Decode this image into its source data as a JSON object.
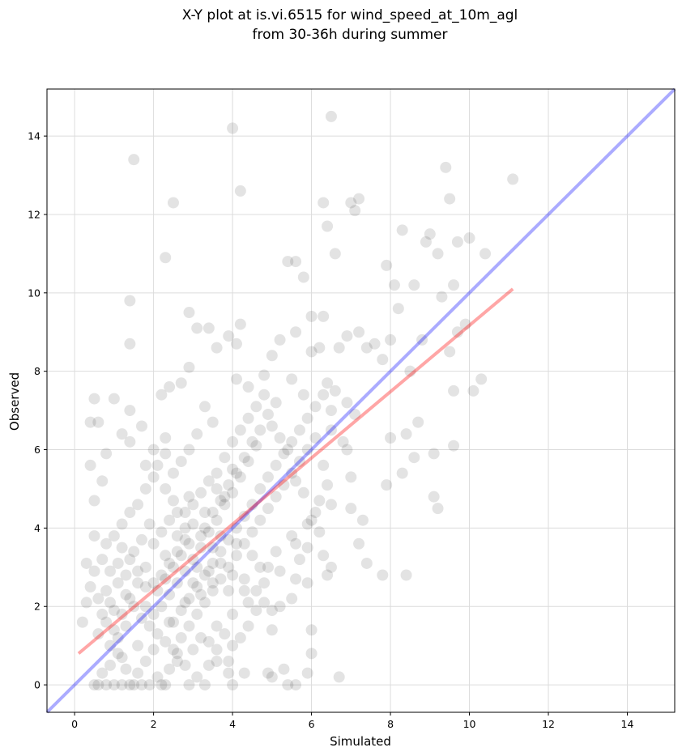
{
  "chart_data": {
    "type": "scatter",
    "title_line1": "X-Y plot at is.vi.6515 for wind_speed_at_10m_agl",
    "title_line2": "from 30-36h during summer",
    "xlabel": "Simulated",
    "ylabel": "Observed",
    "xlim": [
      -0.7,
      15.2
    ],
    "ylim": [
      -0.7,
      15.2
    ],
    "x_ticks": [
      0,
      2,
      4,
      6,
      8,
      10,
      12,
      14
    ],
    "y_ticks": [
      0,
      2,
      4,
      6,
      8,
      10,
      12,
      14
    ],
    "x_tick_labels": [
      "0",
      "2",
      "4",
      "6",
      "8",
      "10",
      "12",
      "14"
    ],
    "y_tick_labels": [
      "0",
      "2",
      "4",
      "6",
      "8",
      "10",
      "12",
      "14"
    ],
    "grid": true,
    "point_color": "#000000",
    "one_to_one_line": {
      "color": "#0000ff",
      "from": [
        -0.7,
        -0.7
      ],
      "to": [
        15.2,
        15.2
      ]
    },
    "regression_line": {
      "color": "#ff0000",
      "from": [
        0.1,
        0.8
      ],
      "to": [
        11.1,
        10.1
      ]
    },
    "points": [
      [
        1.5,
        13.4
      ],
      [
        4.0,
        14.2
      ],
      [
        6.5,
        14.5
      ],
      [
        4.2,
        12.6
      ],
      [
        2.5,
        12.3
      ],
      [
        11.1,
        12.9
      ],
      [
        9.4,
        13.2
      ],
      [
        9.5,
        12.4
      ],
      [
        7.0,
        12.3
      ],
      [
        7.2,
        12.4
      ],
      [
        1.4,
        9.8
      ],
      [
        1.4,
        8.7
      ],
      [
        2.3,
        10.9
      ],
      [
        2.9,
        9.5
      ],
      [
        5.4,
        10.8
      ],
      [
        5.6,
        10.8
      ],
      [
        6.4,
        11.7
      ],
      [
        6.3,
        12.3
      ],
      [
        6.6,
        11.0
      ],
      [
        7.1,
        12.1
      ],
      [
        7.9,
        10.7
      ],
      [
        8.3,
        11.6
      ],
      [
        8.9,
        11.3
      ],
      [
        9.2,
        11.0
      ],
      [
        9.0,
        11.5
      ],
      [
        9.7,
        11.3
      ],
      [
        10.0,
        11.4
      ],
      [
        10.4,
        11.0
      ],
      [
        9.6,
        10.2
      ],
      [
        9.3,
        9.9
      ],
      [
        8.1,
        10.2
      ],
      [
        8.6,
        10.2
      ],
      [
        9.9,
        9.2
      ],
      [
        10.3,
        7.8
      ],
      [
        10.1,
        7.5
      ],
      [
        9.6,
        7.5
      ],
      [
        9.6,
        6.1
      ],
      [
        9.5,
        8.5
      ],
      [
        9.7,
        9.0
      ],
      [
        8.8,
        8.8
      ],
      [
        8.5,
        8.0
      ],
      [
        8.7,
        6.7
      ],
      [
        8.4,
        6.4
      ],
      [
        8.0,
        6.3
      ],
      [
        8.6,
        5.8
      ],
      [
        8.3,
        5.4
      ],
      [
        8.4,
        2.8
      ],
      [
        7.8,
        2.8
      ],
      [
        7.2,
        3.6
      ],
      [
        7.4,
        3.1
      ],
      [
        7.0,
        4.5
      ],
      [
        7.3,
        4.2
      ],
      [
        7.0,
        5.3
      ],
      [
        6.9,
        6.0
      ],
      [
        7.9,
        5.1
      ],
      [
        9.1,
        4.8
      ],
      [
        9.2,
        4.5
      ],
      [
        9.1,
        5.9
      ],
      [
        6.7,
        0.2
      ],
      [
        6.5,
        3.0
      ],
      [
        6.4,
        2.8
      ],
      [
        6.0,
        1.4
      ],
      [
        6.0,
        0.8
      ],
      [
        5.9,
        0.3
      ],
      [
        5.0,
        0.2
      ],
      [
        5.3,
        0.4
      ],
      [
        5.6,
        0.0
      ],
      [
        5.4,
        0.0
      ],
      [
        4.9,
        0.3
      ],
      [
        4.0,
        0.0
      ],
      [
        4.3,
        0.3
      ],
      [
        3.9,
        0.6
      ],
      [
        3.6,
        0.6
      ],
      [
        3.3,
        0.0
      ],
      [
        2.9,
        0.0
      ],
      [
        2.3,
        0.0
      ],
      [
        2.2,
        0.0
      ],
      [
        1.9,
        0.0
      ],
      [
        1.7,
        0.0
      ],
      [
        1.5,
        0.0
      ],
      [
        1.4,
        0.0
      ],
      [
        1.2,
        0.0
      ],
      [
        1.0,
        0.0
      ],
      [
        0.8,
        0.0
      ],
      [
        0.6,
        0.0
      ],
      [
        0.5,
        0.0
      ],
      [
        0.7,
        0.3
      ],
      [
        0.9,
        0.5
      ],
      [
        1.1,
        0.8
      ],
      [
        1.3,
        0.4
      ],
      [
        1.6,
        0.3
      ],
      [
        1.8,
        0.6
      ],
      [
        2.1,
        0.2
      ],
      [
        2.4,
        0.4
      ],
      [
        2.6,
        0.8
      ],
      [
        2.8,
        0.5
      ],
      [
        3.1,
        0.2
      ],
      [
        3.4,
        0.5
      ],
      [
        3.6,
        0.9
      ],
      [
        3.9,
        0.3
      ],
      [
        0.2,
        1.6
      ],
      [
        0.3,
        2.1
      ],
      [
        0.4,
        2.5
      ],
      [
        0.5,
        2.9
      ],
      [
        0.3,
        3.1
      ],
      [
        0.5,
        3.8
      ],
      [
        0.5,
        4.7
      ],
      [
        0.4,
        5.6
      ],
      [
        0.4,
        6.7
      ],
      [
        0.5,
        7.3
      ],
      [
        0.6,
        6.7
      ],
      [
        0.8,
        5.9
      ],
      [
        0.7,
        5.2
      ],
      [
        1.0,
        7.3
      ],
      [
        1.2,
        6.4
      ],
      [
        1.4,
        7.0
      ],
      [
        1.4,
        6.2
      ],
      [
        1.7,
        6.6
      ],
      [
        1.8,
        5.6
      ],
      [
        2.0,
        6.0
      ],
      [
        2.3,
        6.3
      ],
      [
        2.2,
        7.4
      ],
      [
        2.4,
        7.6
      ],
      [
        2.7,
        7.7
      ],
      [
        2.9,
        8.1
      ],
      [
        3.1,
        9.1
      ],
      [
        3.4,
        9.1
      ],
      [
        3.6,
        8.6
      ],
      [
        3.9,
        8.9
      ],
      [
        4.1,
        8.7
      ],
      [
        4.2,
        9.2
      ],
      [
        4.1,
        7.8
      ],
      [
        4.4,
        7.6
      ],
      [
        4.8,
        7.9
      ],
      [
        5.0,
        8.4
      ],
      [
        5.2,
        8.8
      ],
      [
        5.6,
        9.0
      ],
      [
        5.8,
        10.4
      ],
      [
        6.0,
        9.4
      ],
      [
        6.3,
        9.4
      ],
      [
        6.0,
        8.5
      ],
      [
        6.2,
        8.6
      ],
      [
        6.7,
        8.6
      ],
      [
        6.9,
        8.9
      ],
      [
        7.2,
        9.0
      ],
      [
        7.4,
        8.6
      ],
      [
        7.6,
        8.7
      ],
      [
        7.8,
        8.3
      ],
      [
        8.0,
        8.8
      ],
      [
        8.2,
        9.6
      ],
      [
        5.5,
        7.8
      ],
      [
        5.8,
        7.4
      ],
      [
        6.4,
        7.7
      ],
      [
        6.6,
        7.5
      ],
      [
        6.9,
        7.2
      ],
      [
        7.1,
        6.9
      ],
      [
        6.8,
        6.2
      ],
      [
        6.5,
        6.5
      ],
      [
        6.3,
        5.6
      ],
      [
        6.1,
        4.4
      ],
      [
        6.2,
        3.9
      ],
      [
        6.5,
        4.6
      ],
      [
        5.9,
        3.5
      ],
      [
        6.3,
        3.3
      ],
      [
        5.7,
        3.2
      ],
      [
        5.6,
        2.7
      ],
      [
        5.9,
        2.6
      ],
      [
        5.5,
        2.2
      ],
      [
        5.2,
        2.0
      ],
      [
        5.0,
        1.4
      ],
      [
        4.6,
        1.9
      ],
      [
        4.3,
        2.4
      ],
      [
        4.0,
        2.8
      ],
      [
        3.7,
        3.1
      ],
      [
        3.5,
        3.5
      ],
      [
        3.2,
        3.8
      ],
      [
        3.0,
        4.1
      ],
      [
        2.8,
        4.4
      ],
      [
        2.5,
        4.7
      ],
      [
        2.3,
        5.0
      ],
      [
        2.0,
        5.3
      ],
      [
        1.8,
        5.0
      ],
      [
        1.6,
        4.6
      ],
      [
        1.4,
        4.4
      ],
      [
        1.2,
        4.1
      ],
      [
        1.0,
        3.8
      ],
      [
        0.8,
        3.6
      ],
      [
        0.7,
        3.2
      ],
      [
        0.9,
        2.9
      ],
      [
        1.1,
        2.6
      ],
      [
        1.3,
        2.3
      ],
      [
        1.5,
        2.0
      ],
      [
        1.7,
        1.7
      ],
      [
        1.9,
        1.5
      ],
      [
        2.1,
        1.3
      ],
      [
        2.3,
        1.1
      ],
      [
        2.5,
        0.9
      ],
      [
        2.7,
        1.2
      ],
      [
        2.9,
        1.5
      ],
      [
        3.1,
        1.8
      ],
      [
        3.3,
        2.1
      ],
      [
        3.5,
        2.4
      ],
      [
        3.7,
        2.7
      ],
      [
        3.9,
        3.0
      ],
      [
        4.1,
        3.3
      ],
      [
        4.3,
        3.6
      ],
      [
        4.5,
        3.9
      ],
      [
        4.7,
        4.2
      ],
      [
        4.9,
        4.5
      ],
      [
        5.1,
        4.8
      ],
      [
        5.3,
        5.1
      ],
      [
        5.5,
        5.4
      ],
      [
        5.7,
        5.7
      ],
      [
        5.9,
        6.0
      ],
      [
        6.1,
        6.3
      ],
      [
        4.6,
        6.1
      ],
      [
        4.4,
        5.7
      ],
      [
        4.2,
        5.3
      ],
      [
        4.0,
        4.9
      ],
      [
        3.8,
        4.6
      ],
      [
        3.6,
        4.2
      ],
      [
        3.4,
        3.9
      ],
      [
        3.2,
        3.5
      ],
      [
        3.0,
        3.2
      ],
      [
        2.8,
        2.9
      ],
      [
        2.6,
        2.6
      ],
      [
        2.4,
        2.3
      ],
      [
        2.2,
        2.0
      ],
      [
        2.0,
        1.8
      ],
      [
        1.8,
        2.5
      ],
      [
        1.6,
        2.9
      ],
      [
        1.4,
        3.2
      ],
      [
        1.2,
        3.5
      ],
      [
        1.0,
        1.9
      ],
      [
        0.8,
        1.6
      ],
      [
        0.6,
        1.3
      ],
      [
        0.6,
        2.2
      ],
      [
        0.8,
        2.4
      ],
      [
        1.1,
        1.2
      ],
      [
        1.3,
        1.5
      ],
      [
        2.0,
        3.6
      ],
      [
        2.2,
        3.9
      ],
      [
        2.4,
        4.2
      ],
      [
        2.6,
        3.4
      ],
      [
        2.8,
        3.7
      ],
      [
        3.0,
        2.6
      ],
      [
        3.2,
        2.3
      ],
      [
        3.4,
        2.9
      ],
      [
        3.6,
        5.4
      ],
      [
        3.8,
        5.8
      ],
      [
        4.0,
        6.2
      ],
      [
        4.2,
        6.5
      ],
      [
        4.4,
        6.8
      ],
      [
        4.6,
        7.1
      ],
      [
        4.8,
        7.4
      ],
      [
        5.0,
        6.6
      ],
      [
        5.2,
        6.3
      ],
      [
        5.4,
        6.0
      ],
      [
        5.6,
        5.2
      ],
      [
        5.8,
        4.9
      ],
      [
        3.5,
        6.7
      ],
      [
        3.3,
        7.1
      ],
      [
        3.1,
        6.4
      ],
      [
        2.9,
        6.0
      ],
      [
        2.7,
        5.7
      ],
      [
        2.5,
        5.4
      ],
      [
        2.3,
        5.9
      ],
      [
        2.1,
        5.6
      ],
      [
        1.9,
        4.1
      ],
      [
        1.7,
        3.7
      ],
      [
        1.5,
        3.4
      ],
      [
        1.3,
        2.8
      ],
      [
        1.1,
        3.1
      ],
      [
        0.9,
        2.1
      ],
      [
        0.7,
        1.8
      ],
      [
        0.9,
        1.0
      ],
      [
        1.2,
        0.7
      ],
      [
        1.6,
        1.0
      ],
      [
        2.0,
        0.9
      ],
      [
        2.4,
        1.6
      ],
      [
        2.8,
        2.1
      ],
      [
        3.2,
        1.2
      ],
      [
        3.6,
        1.5
      ],
      [
        4.0,
        1.8
      ],
      [
        4.4,
        2.1
      ],
      [
        4.8,
        2.6
      ],
      [
        5.2,
        2.9
      ],
      [
        5.6,
        3.6
      ],
      [
        6.0,
        4.2
      ],
      [
        4.5,
        4.6
      ],
      [
        4.3,
        4.3
      ],
      [
        4.1,
        4.0
      ],
      [
        3.9,
        3.7
      ],
      [
        3.7,
        3.4
      ],
      [
        3.5,
        3.1
      ],
      [
        3.3,
        2.8
      ],
      [
        3.1,
        2.5
      ],
      [
        2.9,
        2.2
      ],
      [
        2.7,
        1.9
      ],
      [
        2.5,
        1.6
      ],
      [
        4.7,
        5.0
      ],
      [
        4.9,
        5.3
      ],
      [
        5.1,
        5.6
      ],
      [
        5.3,
        5.9
      ],
      [
        5.5,
        6.2
      ],
      [
        5.7,
        6.5
      ],
      [
        5.9,
        6.8
      ],
      [
        6.1,
        7.1
      ],
      [
        6.3,
        7.4
      ],
      [
        6.5,
        7.0
      ],
      [
        2.2,
        2.8
      ],
      [
        2.4,
        3.1
      ],
      [
        2.6,
        3.8
      ],
      [
        2.8,
        4.0
      ],
      [
        3.0,
        4.6
      ],
      [
        3.2,
        4.9
      ],
      [
        3.4,
        5.2
      ],
      [
        3.6,
        5.0
      ],
      [
        3.8,
        4.8
      ],
      [
        4.0,
        5.5
      ],
      [
        1.8,
        3.0
      ],
      [
        2.0,
        2.6
      ],
      [
        2.3,
        3.3
      ],
      [
        2.6,
        4.4
      ],
      [
        2.9,
        4.8
      ],
      [
        3.3,
        4.4
      ],
      [
        3.7,
        3.8
      ],
      [
        4.1,
        3.6
      ],
      [
        4.5,
        3.3
      ],
      [
        4.9,
        3.0
      ],
      [
        3.1,
        3.0
      ],
      [
        3.5,
        2.6
      ],
      [
        3.9,
        2.4
      ],
      [
        4.3,
        2.7
      ],
      [
        4.7,
        3.0
      ],
      [
        5.1,
        3.4
      ],
      [
        5.5,
        3.8
      ],
      [
        5.9,
        4.1
      ],
      [
        6.2,
        4.7
      ],
      [
        6.4,
        5.1
      ],
      [
        1.0,
        1.4
      ],
      [
        1.2,
        1.8
      ],
      [
        1.4,
        2.2
      ],
      [
        1.6,
        2.6
      ],
      [
        1.8,
        2.0
      ],
      [
        2.1,
        2.4
      ],
      [
        2.3,
        2.7
      ],
      [
        2.5,
        3.0
      ],
      [
        2.7,
        3.3
      ],
      [
        2.9,
        3.6
      ],
      [
        3.3,
        4.0
      ],
      [
        3.5,
        4.4
      ],
      [
        3.7,
        4.7
      ],
      [
        3.9,
        5.1
      ],
      [
        4.1,
        5.4
      ],
      [
        4.3,
        5.8
      ],
      [
        4.5,
        6.2
      ],
      [
        4.7,
        6.5
      ],
      [
        4.9,
        6.9
      ],
      [
        5.1,
        7.2
      ],
      [
        4.6,
        2.4
      ],
      [
        4.8,
        2.1
      ],
      [
        5.0,
        1.9
      ],
      [
        4.4,
        1.5
      ],
      [
        4.2,
        1.2
      ],
      [
        4.0,
        1.0
      ],
      [
        3.8,
        1.3
      ],
      [
        3.4,
        1.1
      ],
      [
        3.0,
        0.9
      ],
      [
        2.6,
        0.6
      ]
    ]
  }
}
